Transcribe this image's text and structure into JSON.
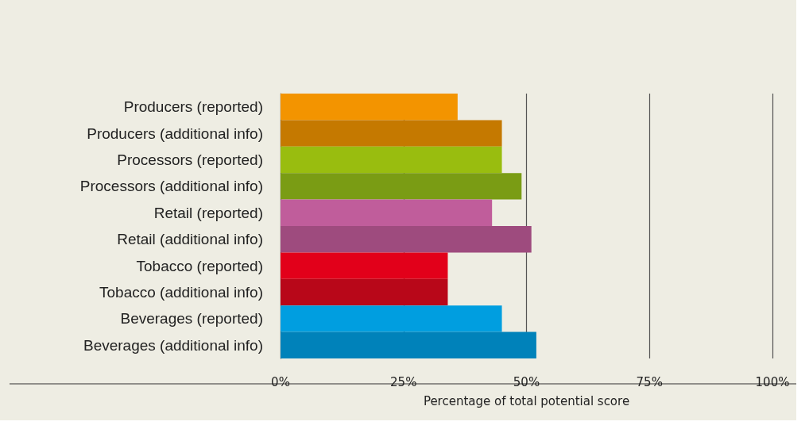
{
  "chart_data": {
    "type": "bar",
    "orientation": "horizontal",
    "xlabel": "Percentage of total potential score",
    "categories": [
      "Producers (reported)",
      "Producers (additional info)",
      "Processors (reported)",
      "Processors (additional info)",
      "Retail (reported)",
      "Retail (additional info)",
      "Tobacco (reported)",
      "Tobacco (additional info)",
      "Beverages (reported)",
      "Beverages (additional info)"
    ],
    "values": [
      36,
      45,
      45,
      49,
      43,
      51,
      34,
      34,
      45,
      52
    ],
    "colors": [
      "#f39400",
      "#c57900",
      "#99bd0f",
      "#7a9c14",
      "#c05d9b",
      "#9e4b7e",
      "#e2001a",
      "#b80719",
      "#009ee0",
      "#0082ba"
    ],
    "xlim": [
      0,
      100
    ],
    "xticks": [
      {
        "value": 0,
        "label": "0%"
      },
      {
        "value": 25,
        "label": "25%"
      },
      {
        "value": 50,
        "label": "50%"
      },
      {
        "value": 75,
        "label": "75%"
      },
      {
        "value": 100,
        "label": "100%"
      }
    ],
    "grid": "x"
  }
}
